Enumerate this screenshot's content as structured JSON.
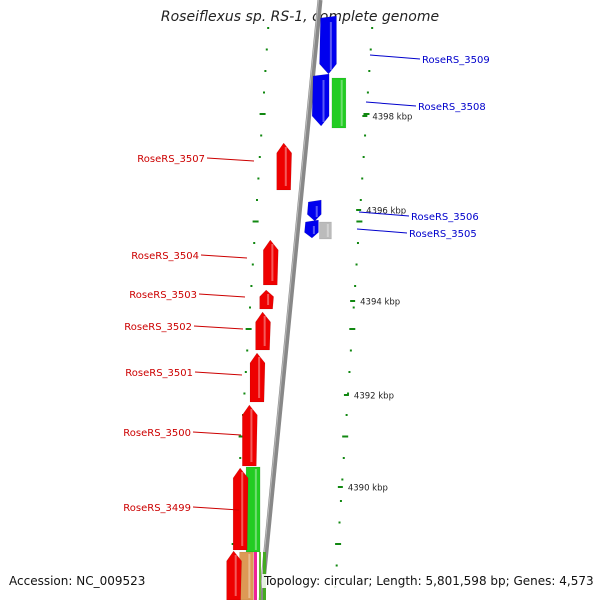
{
  "title": "Roseiflexus sp. RS-1, complete genome",
  "accession": "Accession: NC_009523",
  "topology": "Topology: circular; Length: 5,801,598 bp; Genes: 4,573",
  "colors": {
    "forward_gene": "#0000ee",
    "reverse_gene": "#ee0000",
    "cds": "#22cc22",
    "other_feature": "#bbbbbb",
    "backbone": "#888888",
    "tick": "#118811",
    "forward_label": "#0000cc",
    "reverse_label": "#cc0000"
  },
  "scale_labels": [
    "4398 kbp",
    "4396 kbp",
    "4394 kbp",
    "4392 kbp",
    "4390 kbp"
  ],
  "forward_gene_labels": [
    "RoseRS_3509",
    "RoseRS_3508",
    "RoseRS_3506",
    "RoseRS_3505"
  ],
  "reverse_gene_labels": [
    "RoseRS_3507",
    "RoseRS_3504",
    "RoseRS_3503",
    "RoseRS_3502",
    "RoseRS_3501",
    "RoseRS_3500",
    "RoseRS_3499"
  ]
}
